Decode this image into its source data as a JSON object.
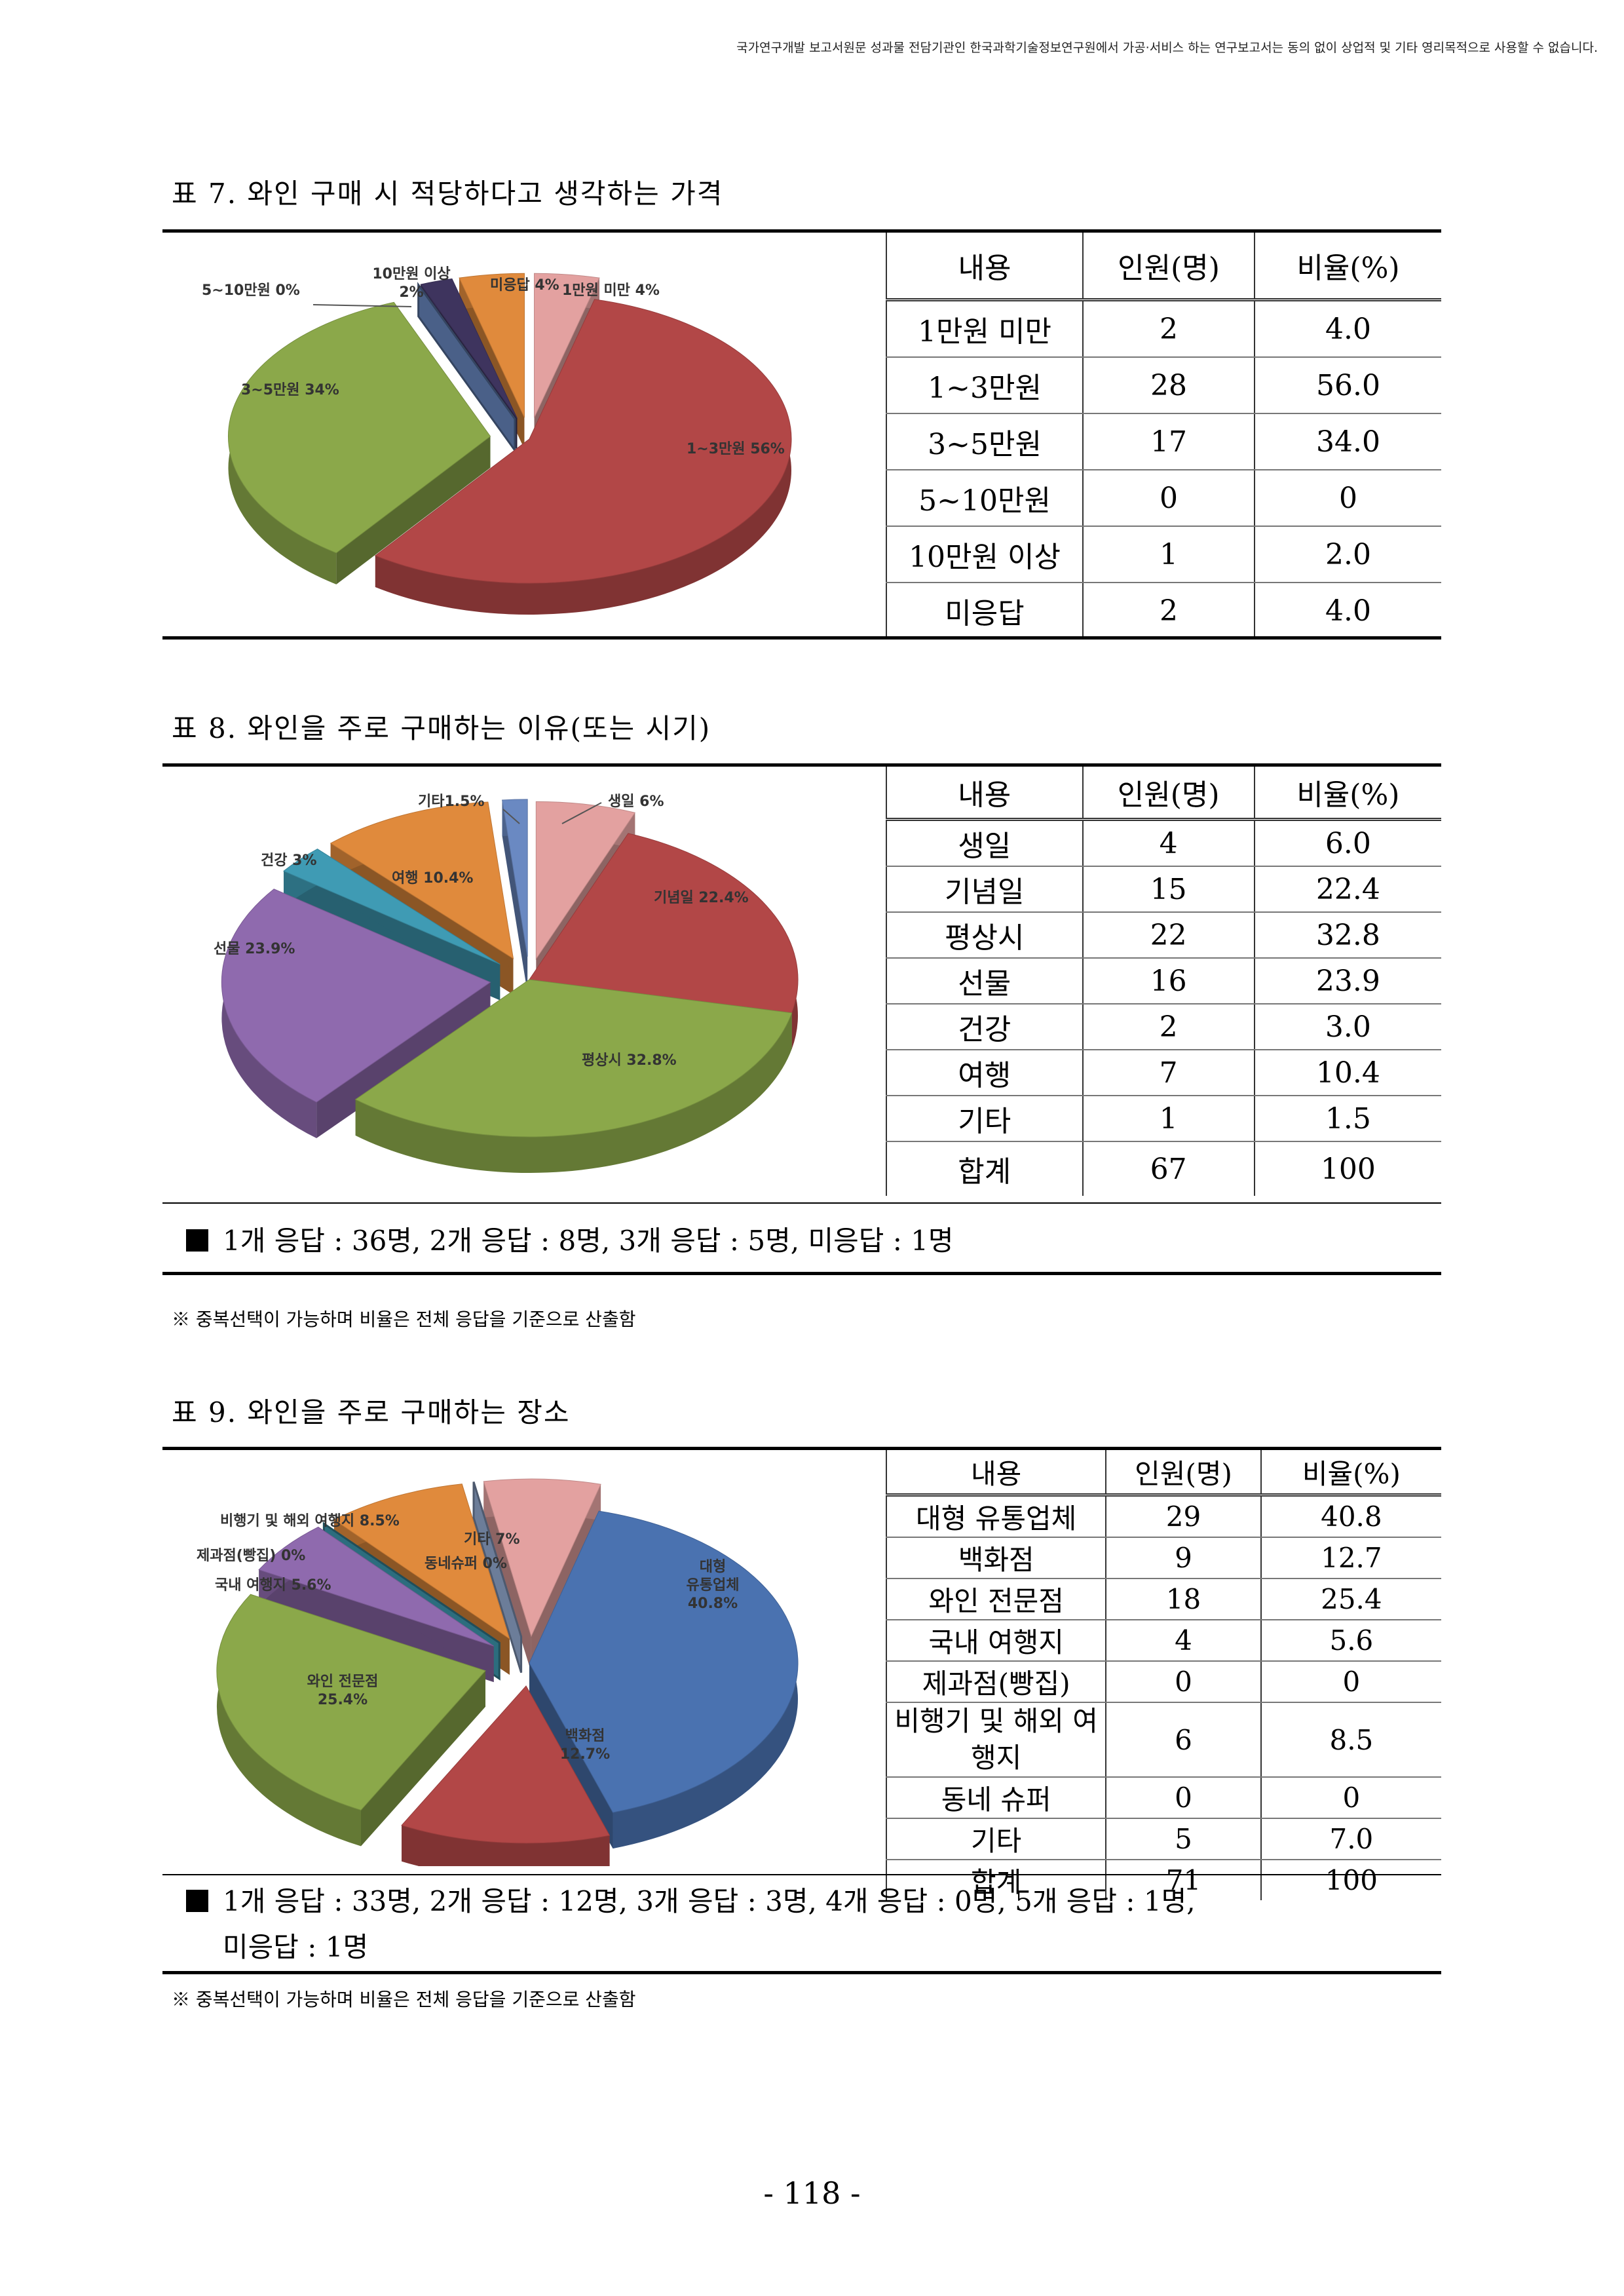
{
  "header_notice": "국가연구개발 보고서원문 성과물 전담기관인 한국과학기술정보연구원에서 가공·서비스 하는 연구보고서는 동의 없이 상업적 및 기타 영리목적으로 사용할 수 없습니다.",
  "table7": {
    "title": "표 7. 와인 구매 시 적당하다고 생각하는 가격",
    "headers": [
      "내용",
      "인원(명)",
      "비율(%)"
    ],
    "rows": [
      [
        "1만원 미만",
        "2",
        "4.0"
      ],
      [
        "1~3만원",
        "28",
        "56.0"
      ],
      [
        "3~5만원",
        "17",
        "34.0"
      ],
      [
        "5~10만원",
        "0",
        "0"
      ],
      [
        "10만원 이상",
        "1",
        "2.0"
      ],
      [
        "미응답",
        "2",
        "4.0"
      ]
    ]
  },
  "table8": {
    "title": "표 8. 와인을 주로 구매하는 이유(또는 시기)",
    "headers": [
      "내용",
      "인원(명)",
      "비율(%)"
    ],
    "rows": [
      [
        "생일",
        "4",
        "6.0"
      ],
      [
        "기념일",
        "15",
        "22.4"
      ],
      [
        "평상시",
        "22",
        "32.8"
      ],
      [
        "선물",
        "16",
        "23.9"
      ],
      [
        "건강",
        "2",
        "3.0"
      ],
      [
        "여행",
        "7",
        "10.4"
      ],
      [
        "기타",
        "1",
        "1.5"
      ],
      [
        "합계",
        "67",
        "100"
      ]
    ],
    "note": "1개 응답 : 36명, 2개 응답 : 8명, 3개 응답 : 5명, 미응답 : 1명",
    "footnote": "※ 중복선택이 가능하며 비율은 전체 응답을 기준으로 산출함"
  },
  "table9": {
    "title": "표 9. 와인을 주로 구매하는 장소",
    "headers": [
      "내용",
      "인원(명)",
      "비율(%)"
    ],
    "rows": [
      [
        "대형 유통업체",
        "29",
        "40.8"
      ],
      [
        "백화점",
        "9",
        "12.7"
      ],
      [
        "와인 전문점",
        "18",
        "25.4"
      ],
      [
        "국내 여행지",
        "4",
        "5.6"
      ],
      [
        "제과점(빵집)",
        "0",
        "0"
      ],
      [
        "비행기 및 해외 여행지",
        "6",
        "8.5"
      ],
      [
        "동네 슈퍼",
        "0",
        "0"
      ],
      [
        "기타",
        "5",
        "7.0"
      ],
      [
        "합계",
        "71",
        "100"
      ]
    ],
    "note_line1": "1개 응답 : 33명, 2개 응답 : 12명, 3개 응답 : 3명, 4개 응답 : 0명, 5개 응답 : 1명,",
    "note_line2": "미응답 : 1명",
    "footnote": "※ 중복선택이 가능하며 비율은 전체 응답을 기준으로 산출함"
  },
  "chart_data": [
    {
      "type": "pie",
      "categories": [
        "1만원 미만",
        "1~3만원",
        "3~5만원",
        "5~10만원",
        "10만원 이상",
        "미응답"
      ],
      "values": [
        4,
        56,
        34,
        0,
        2,
        4
      ],
      "labels": [
        "1만원 미만 4%",
        "1~3만원 56%",
        "3~5만원 34%",
        "5~10만원 0%",
        "10만원 이상 2%",
        "미응답 4%"
      ],
      "colors": [
        "#e3a1a0",
        "#b24747",
        "#8ba84a",
        "#6a89c2",
        "#3e345e",
        "#e08a3c"
      ]
    },
    {
      "type": "pie",
      "categories": [
        "생일",
        "기념일",
        "평상시",
        "선물",
        "건강",
        "여행",
        "기타"
      ],
      "values": [
        6,
        22.4,
        32.8,
        23.9,
        3,
        10.4,
        1.5
      ],
      "labels": [
        "생일 6%",
        "기념일 22.4%",
        "평상시 32.8%",
        "선물 23.9%",
        "건강 3%",
        "여행 10.4%",
        "기타1.5%"
      ],
      "colors": [
        "#e3a1a0",
        "#b24747",
        "#8ba84a",
        "#8f6aae",
        "#3f9bb4",
        "#e08a3c",
        "#6a89c2"
      ]
    },
    {
      "type": "pie",
      "categories": [
        "대형 유통업체",
        "백화점",
        "와인 전문점",
        "국내 여행지",
        "제과점(빵집)",
        "비행기 및 해외 여행지",
        "동네슈퍼",
        "기타"
      ],
      "values": [
        40.8,
        12.7,
        25.4,
        5.6,
        0,
        8.5,
        0,
        7
      ],
      "labels": [
        "대형 유통업체 40.8%",
        "백화점 12.7%",
        "와인 전문점 25.4%",
        "국내 여행지 5.6%",
        "제과점(빵집) 0%",
        "비행기 및 해외 여행지 8.5%",
        "동네슈퍼 0%",
        "기타 7%"
      ],
      "colors": [
        "#4a72b0",
        "#b24747",
        "#8ba84a",
        "#8f6aae",
        "#3f9bb4",
        "#e08a3c",
        "#9ab2db",
        "#e3a1a0"
      ]
    }
  ],
  "page_number": "- 118 -"
}
